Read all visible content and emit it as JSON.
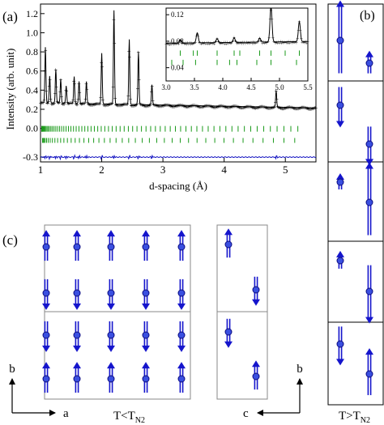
{
  "panel_a": {
    "label": "(a)",
    "ylabel": "Intensity (arb. unit)",
    "xlabel": "d-spacing (Å)",
    "xticks": [
      "1",
      "2",
      "3",
      "4",
      "5"
    ],
    "yticks": [
      "1.2",
      "1.0",
      "0.8",
      "0.6",
      "0.4",
      "0.2",
      "0.0",
      "-0.3"
    ],
    "inset": {
      "xticks": [
        "3.0",
        "3.5",
        "4.0",
        "4.5",
        "5.0",
        "5.5"
      ],
      "yticks": [
        "0.12",
        "0.08",
        "0.04"
      ]
    }
  },
  "panel_b": {
    "label": "(b)",
    "caption_main": "T>T",
    "caption_sub": "N2"
  },
  "panel_c": {
    "label": "(c)",
    "caption_main": "T<T",
    "caption_sub": "N2",
    "axis_b_left": "b",
    "axis_a": "a",
    "axis_b_right": "b",
    "axis_c": "c"
  },
  "colors": {
    "observed": "#d00000",
    "calculated": "#000000",
    "reflections": "#1a9a1a",
    "difference": "#1010c0",
    "spin": "#1515cc"
  },
  "chart_data": {
    "type": "line",
    "xlim": [
      1.0,
      5.5
    ],
    "ylim": [
      -0.35,
      1.3
    ],
    "peaks": [
      {
        "d": 1.08,
        "intensity": 0.85
      },
      {
        "d": 1.15,
        "intensity": 0.55
      },
      {
        "d": 1.25,
        "intensity": 0.62
      },
      {
        "d": 1.33,
        "intensity": 0.52
      },
      {
        "d": 1.42,
        "intensity": 0.45
      },
      {
        "d": 1.55,
        "intensity": 0.55
      },
      {
        "d": 1.63,
        "intensity": 0.5
      },
      {
        "d": 1.75,
        "intensity": 0.5
      },
      {
        "d": 2.0,
        "intensity": 0.8
      },
      {
        "d": 2.2,
        "intensity": 1.25
      },
      {
        "d": 2.45,
        "intensity": 0.95
      },
      {
        "d": 2.6,
        "intensity": 0.82
      },
      {
        "d": 2.82,
        "intensity": 0.48
      },
      {
        "d": 4.85,
        "intensity": 0.44
      }
    ],
    "background_level": 0.27,
    "inset": {
      "xlim": [
        3.0,
        5.5
      ],
      "ylim": [
        0.02,
        0.13
      ],
      "peaks": [
        {
          "d": 3.25,
          "intensity": 0.082
        },
        {
          "d": 3.55,
          "intensity": 0.092
        },
        {
          "d": 3.9,
          "intensity": 0.083
        },
        {
          "d": 4.2,
          "intensity": 0.084
        },
        {
          "d": 4.65,
          "intensity": 0.083
        },
        {
          "d": 4.85,
          "intensity": 0.13
        },
        {
          "d": 5.35,
          "intensity": 0.107
        }
      ],
      "background_level": 0.077
    }
  }
}
